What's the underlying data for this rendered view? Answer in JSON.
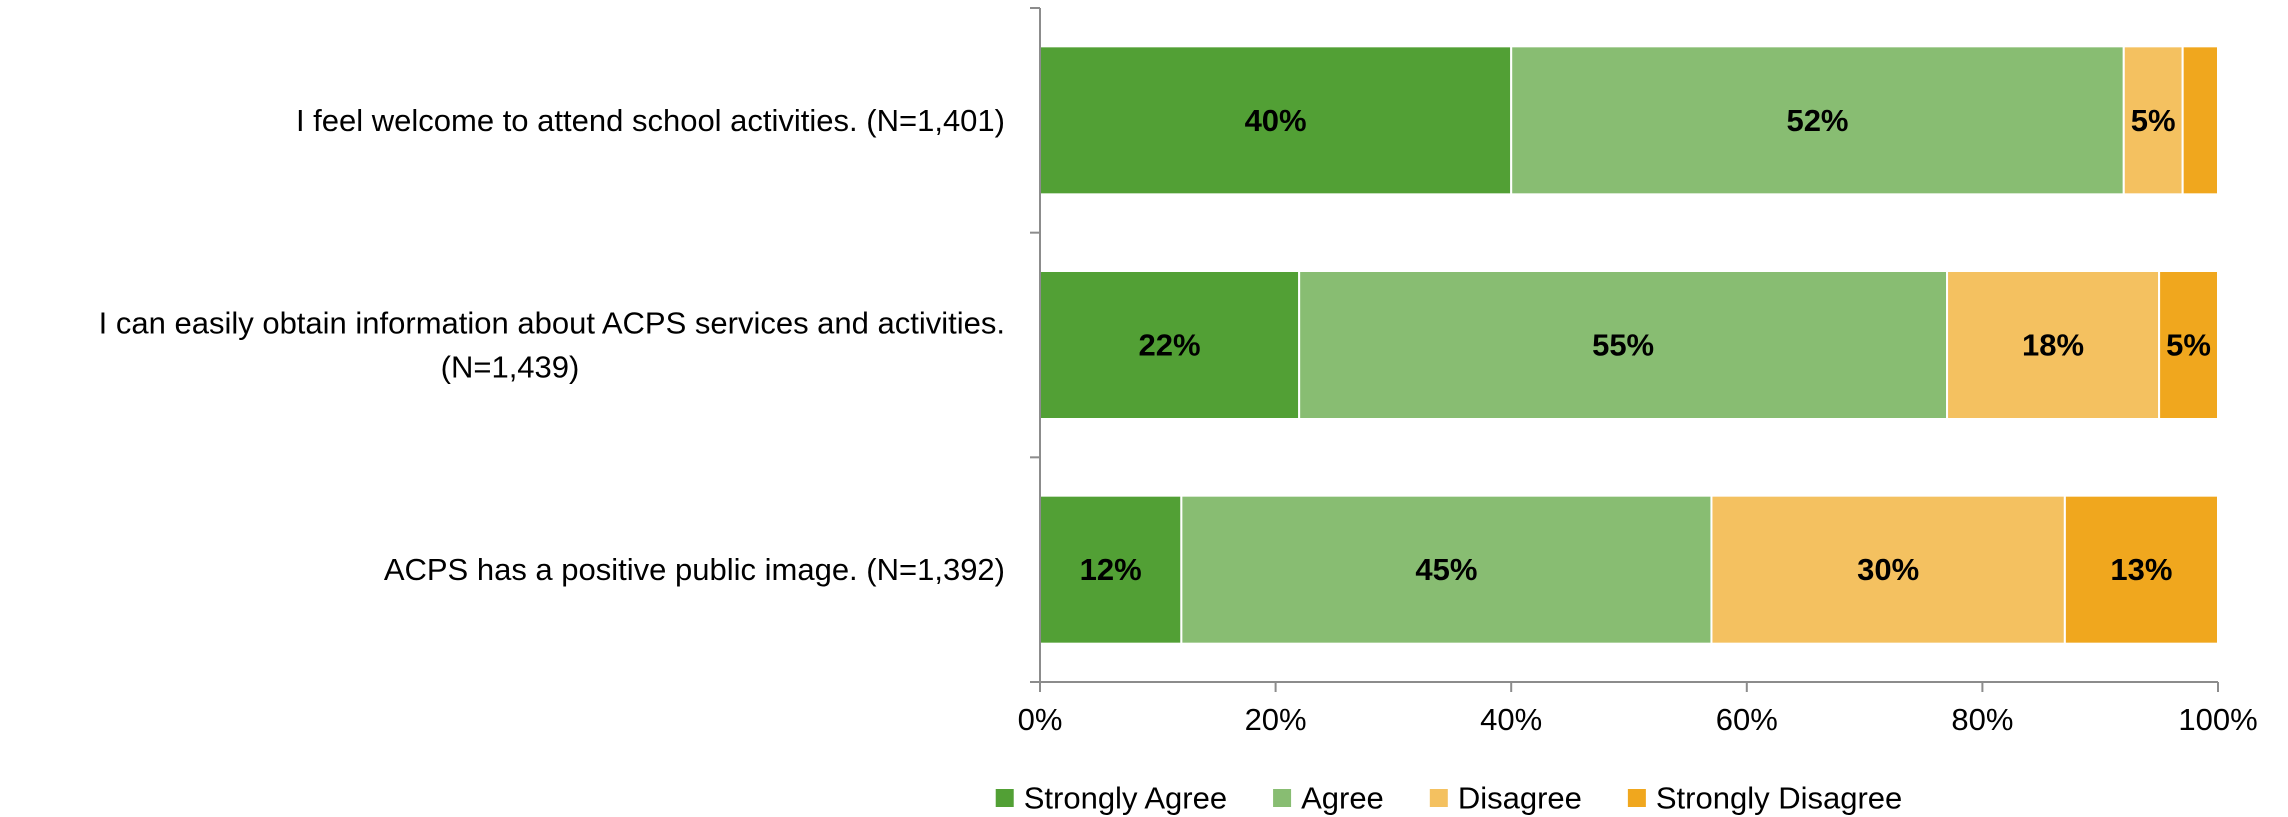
{
  "chart_data": {
    "type": "bar",
    "orientation": "horizontal",
    "stacked": "percent",
    "title": "",
    "xlabel": "",
    "ylabel": "",
    "xlim": [
      0,
      100
    ],
    "x_ticks": [
      "0%",
      "20%",
      "40%",
      "60%",
      "80%",
      "100%"
    ],
    "grid": false,
    "legend_position": "bottom",
    "categories": [
      [
        "I feel welcome to attend school activities. (N=1,401)"
      ],
      [
        "I can easily obtain information about ACPS services and activities.",
        "(N=1,439)"
      ],
      [
        "ACPS has a positive public image. (N=1,392)"
      ]
    ],
    "series": [
      {
        "name": "Strongly Agree",
        "color": "#52a035",
        "values": [
          40,
          22,
          12
        ],
        "labels": [
          "40%",
          "22%",
          "12%"
        ]
      },
      {
        "name": "Agree",
        "color": "#88bd72",
        "values": [
          52,
          55,
          45
        ],
        "labels": [
          "52%",
          "55%",
          "45%"
        ]
      },
      {
        "name": "Disagree",
        "color": "#f4c160",
        "values": [
          5,
          18,
          30
        ],
        "labels": [
          "5%",
          "18%",
          "30%"
        ]
      },
      {
        "name": "Strongly Disagree",
        "color": "#f0a71e",
        "values": [
          3,
          5,
          13
        ],
        "labels": [
          "",
          "5%",
          "13%"
        ]
      }
    ]
  }
}
